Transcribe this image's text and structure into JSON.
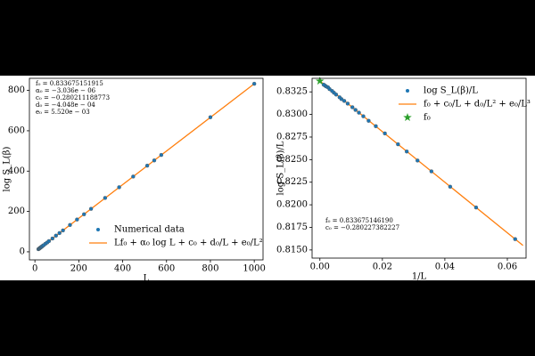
{
  "chart_data": [
    {
      "type": "scatter",
      "xlabel": "L",
      "ylabel": "log S_L(β)",
      "xlim": [
        -25,
        1040
      ],
      "ylim": [
        -40,
        860
      ],
      "xticks": [
        0,
        200,
        400,
        600,
        800,
        1000
      ],
      "yticks": [
        0,
        200,
        400,
        600,
        800
      ],
      "legend": "lower center",
      "annotations": [
        "f₀ = 0.833675151915",
        "α₀ = −3.036e − 06",
        "c₀ = −0.280211188773",
        "d₀ = −4.048e − 04",
        "e₀ = 5.520e − 03"
      ],
      "series": [
        {
          "name": "Numerical data",
          "color": "#1f77b4",
          "marker": "point",
          "x": [
            16,
            18,
            20,
            22,
            24,
            26,
            28,
            30,
            32,
            36,
            40,
            48,
            56,
            64,
            80,
            96,
            112,
            128,
            160,
            192,
            224,
            256,
            320,
            384,
            448,
            512,
            544,
            576,
            800,
            1000
          ],
          "values": [
            13,
            15,
            16,
            18,
            20,
            21,
            23,
            25,
            26,
            30,
            33,
            40,
            46,
            53,
            66,
            80,
            93,
            106,
            133,
            160,
            186,
            213,
            267,
            320,
            373,
            427,
            453,
            480,
            667,
            833
          ]
        },
        {
          "name": "Lf₀ + α₀ log L + c₀ + d₀/L + e₀/L²",
          "color": "#ff7f0e",
          "marker": "line",
          "x": [
            16,
            1000
          ],
          "values": [
            13,
            833
          ]
        }
      ]
    },
    {
      "type": "scatter",
      "xlabel": "1/L",
      "ylabel": "log S_L(β)/L",
      "xlim": [
        -0.0025,
        0.066
      ],
      "ylim": [
        0.8141,
        0.834
      ],
      "xticks": [
        {
          "value": 0,
          "label": "0.00"
        },
        {
          "value": 0.02,
          "label": "0.02"
        },
        {
          "value": 0.04,
          "label": "0.04"
        },
        {
          "value": 0.06,
          "label": "0.06"
        }
      ],
      "yticks": [
        {
          "value": 0.815,
          "label": "0.8150"
        },
        {
          "value": 0.8175,
          "label": "0.8175"
        },
        {
          "value": 0.82,
          "label": "0.8200"
        },
        {
          "value": 0.8225,
          "label": "0.8225"
        },
        {
          "value": 0.825,
          "label": "0.8250"
        },
        {
          "value": 0.8275,
          "label": "0.8275"
        },
        {
          "value": 0.83,
          "label": "0.8300"
        },
        {
          "value": 0.8325,
          "label": "0.8325"
        }
      ],
      "legend": "upper right",
      "annotations": [
        "f₀ = 0.833675146190",
        "c₀ = −0.280227382227"
      ],
      "series": [
        {
          "name": "log S_L(β)/L",
          "color": "#1f77b4",
          "marker": "point",
          "x": [
            0.0625,
            0.05,
            0.0417,
            0.0357,
            0.03125,
            0.0278,
            0.025,
            0.0208,
            0.0179,
            0.0156,
            0.0139,
            0.0125,
            0.0114,
            0.0104,
            0.0089,
            0.0078,
            0.0069,
            0.0063,
            0.0052,
            0.0045,
            0.0039,
            0.0031,
            0.0026,
            0.002,
            0.0016,
            0.0012
          ],
          "values": [
            0.8162,
            0.8197,
            0.822,
            0.8237,
            0.8249,
            0.8259,
            0.8267,
            0.8279,
            0.8287,
            0.8293,
            0.8298,
            0.8302,
            0.8305,
            0.8308,
            0.8312,
            0.8315,
            0.8317,
            0.8319,
            0.8322,
            0.8324,
            0.8326,
            0.8328,
            0.833,
            0.8331,
            0.8332,
            0.8333
          ]
        },
        {
          "name": "f₀ + c₀/L + d₀/L² + e₀/L³",
          "color": "#ff7f0e",
          "marker": "line",
          "x": [
            0,
            0.065
          ],
          "values": [
            0.8337,
            0.8155
          ]
        },
        {
          "name": "f₀",
          "color": "#2ca02c",
          "marker": "star",
          "x": [
            0
          ],
          "values": [
            0.8337
          ]
        }
      ]
    }
  ]
}
